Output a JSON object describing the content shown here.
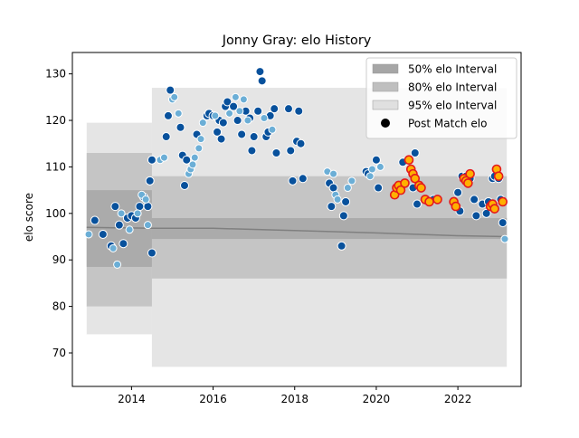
{
  "chart_data": {
    "type": "scatter",
    "title": "Jonny Gray: elo History",
    "xlabel": "",
    "ylabel": "elo score",
    "xlim": [
      2012.55,
      2023.55
    ],
    "ylim": [
      62.8,
      134.6
    ],
    "x_ticks": [
      2014,
      2016,
      2018,
      2020,
      2022
    ],
    "y_ticks": [
      70,
      80,
      90,
      100,
      110,
      120,
      130
    ],
    "grid": false,
    "legend": {
      "placement": "top-right",
      "entries": [
        "50% elo Interval",
        "80% elo Interval",
        "95% elo Interval",
        "Post Match elo"
      ]
    },
    "colors": {
      "band50": "#a6a6a6",
      "band80": "#bfbfbf",
      "band95": "#e0e0e0",
      "mean_line": "#808080",
      "dark_points": "#08519c",
      "light_points": "#6baed6",
      "highlight_fill": "#ffb000",
      "highlight_edge": "#e41a1c"
    },
    "mean_line": [
      [
        2012.9,
        97
      ],
      [
        2014.5,
        96.8
      ],
      [
        2016,
        96.8
      ],
      [
        2018,
        96.3
      ],
      [
        2020,
        95.8
      ],
      [
        2022,
        95.2
      ],
      [
        2023.2,
        95
      ]
    ],
    "bands": [
      {
        "name": "50% elo Interval",
        "segments": [
          {
            "x0": 2012.9,
            "x1": 2014.5,
            "lower": 88.5,
            "upper": 105
          },
          {
            "x0": 2014.5,
            "x1": 2023.2,
            "lower": 94.5,
            "upper": 99
          }
        ]
      },
      {
        "name": "80% elo Interval",
        "segments": [
          {
            "x0": 2012.9,
            "x1": 2014.5,
            "lower": 80,
            "upper": 113
          },
          {
            "x0": 2014.5,
            "x1": 2023.2,
            "lower": 86,
            "upper": 108
          }
        ]
      },
      {
        "name": "95% elo Interval",
        "segments": [
          {
            "x0": 2012.9,
            "x1": 2014.5,
            "lower": 74,
            "upper": 119.5
          },
          {
            "x0": 2014.5,
            "x1": 2023.2,
            "lower": 67,
            "upper": 127
          }
        ]
      }
    ],
    "series": [
      {
        "name": "Post Match elo",
        "points": [
          [
            2013.1,
            98.5
          ],
          [
            2013.3,
            95.5
          ],
          [
            2013.5,
            93
          ],
          [
            2013.6,
            101.5
          ],
          [
            2013.7,
            97.5
          ],
          [
            2013.8,
            93.5
          ],
          [
            2013.9,
            99
          ],
          [
            2014.0,
            99.5
          ],
          [
            2014.1,
            99
          ],
          [
            2014.2,
            101.5
          ],
          [
            2014.3,
            103.5
          ],
          [
            2014.4,
            101.5
          ],
          [
            2014.45,
            107
          ],
          [
            2014.5,
            111.5
          ],
          [
            2014.5,
            91.5
          ],
          [
            2014.85,
            116.5
          ],
          [
            2014.9,
            121
          ],
          [
            2014.95,
            126.5
          ],
          [
            2015.2,
            118.5
          ],
          [
            2015.25,
            112.5
          ],
          [
            2015.3,
            106
          ],
          [
            2015.35,
            111.5
          ],
          [
            2015.6,
            117
          ],
          [
            2015.85,
            121
          ],
          [
            2015.9,
            121.5
          ],
          [
            2016.0,
            121
          ],
          [
            2016.1,
            117.5
          ],
          [
            2016.15,
            120
          ],
          [
            2016.2,
            116
          ],
          [
            2016.25,
            119.5
          ],
          [
            2016.3,
            123
          ],
          [
            2016.35,
            124
          ],
          [
            2016.5,
            123
          ],
          [
            2016.6,
            120
          ],
          [
            2016.7,
            117
          ],
          [
            2016.8,
            122
          ],
          [
            2016.9,
            120.5
          ],
          [
            2016.95,
            113.5
          ],
          [
            2017.0,
            116.5
          ],
          [
            2017.1,
            122
          ],
          [
            2017.15,
            130.5
          ],
          [
            2017.2,
            128.5
          ],
          [
            2017.3,
            116.5
          ],
          [
            2017.35,
            117.5
          ],
          [
            2017.4,
            121
          ],
          [
            2017.5,
            122.5
          ],
          [
            2017.55,
            113
          ],
          [
            2017.85,
            122.5
          ],
          [
            2017.9,
            113.5
          ],
          [
            2017.95,
            107
          ],
          [
            2018.05,
            115.5
          ],
          [
            2018.1,
            122
          ],
          [
            2018.15,
            115
          ],
          [
            2018.2,
            107.5
          ],
          [
            2018.85,
            106.5
          ],
          [
            2018.9,
            101.5
          ],
          [
            2018.95,
            105.5
          ],
          [
            2019.15,
            93
          ],
          [
            2019.2,
            99.5
          ],
          [
            2019.25,
            102.5
          ],
          [
            2019.75,
            109
          ],
          [
            2019.8,
            108.5
          ],
          [
            2020.0,
            111.5
          ],
          [
            2020.05,
            105.5
          ],
          [
            2020.65,
            111
          ],
          [
            2020.9,
            105.5
          ],
          [
            2020.95,
            113
          ],
          [
            2021.0,
            102
          ],
          [
            2021.4,
            103
          ],
          [
            2022.0,
            104.5
          ],
          [
            2022.05,
            100.5
          ],
          [
            2022.1,
            108
          ],
          [
            2022.2,
            108
          ],
          [
            2022.3,
            107.5
          ],
          [
            2022.4,
            103
          ],
          [
            2022.45,
            99.5
          ],
          [
            2022.6,
            102
          ],
          [
            2022.7,
            100
          ],
          [
            2022.75,
            102.5
          ],
          [
            2022.85,
            107.5
          ],
          [
            2022.9,
            108
          ],
          [
            2023.0,
            107.5
          ],
          [
            2023.05,
            103
          ],
          [
            2023.1,
            98
          ],
          [
            2023.15,
            94.5
          ],
          [
            2012.95,
            95.5
          ],
          [
            2013.55,
            92.5
          ],
          [
            2013.65,
            89
          ],
          [
            2013.75,
            100
          ],
          [
            2013.95,
            96.5
          ],
          [
            2014.15,
            100
          ],
          [
            2014.25,
            104
          ],
          [
            2014.35,
            103
          ],
          [
            2014.4,
            97.5
          ],
          [
            2014.7,
            111.5
          ],
          [
            2014.8,
            112
          ],
          [
            2015.0,
            124.5
          ],
          [
            2015.05,
            125
          ],
          [
            2015.15,
            121.5
          ],
          [
            2015.4,
            108.5
          ],
          [
            2015.45,
            109.5
          ],
          [
            2015.5,
            110.5
          ],
          [
            2015.55,
            112
          ],
          [
            2015.65,
            114
          ],
          [
            2015.7,
            116
          ],
          [
            2015.75,
            119.5
          ],
          [
            2016.05,
            121
          ],
          [
            2016.4,
            121.5
          ],
          [
            2016.55,
            125
          ],
          [
            2016.65,
            122
          ],
          [
            2016.75,
            124.5
          ],
          [
            2016.85,
            120
          ],
          [
            2017.25,
            120.5
          ],
          [
            2017.45,
            118
          ],
          [
            2018.8,
            109
          ],
          [
            2018.95,
            108.5
          ],
          [
            2019.0,
            104
          ],
          [
            2019.05,
            103
          ],
          [
            2019.3,
            105.5
          ],
          [
            2019.4,
            107
          ],
          [
            2019.85,
            108
          ],
          [
            2019.9,
            109.5
          ],
          [
            2020.1,
            110
          ]
        ]
      }
    ],
    "highlighted_points": [
      [
        2020.45,
        104
      ],
      [
        2020.5,
        105.5
      ],
      [
        2020.55,
        106
      ],
      [
        2020.6,
        105
      ],
      [
        2020.7,
        106.5
      ],
      [
        2020.8,
        111.5
      ],
      [
        2020.85,
        109.5
      ],
      [
        2020.9,
        108.5
      ],
      [
        2020.95,
        107.5
      ],
      [
        2021.05,
        106
      ],
      [
        2021.1,
        105.5
      ],
      [
        2021.2,
        103
      ],
      [
        2021.3,
        102.5
      ],
      [
        2021.5,
        103
      ],
      [
        2021.9,
        102.5
      ],
      [
        2021.95,
        101.5
      ],
      [
        2022.15,
        107.5
      ],
      [
        2022.2,
        107
      ],
      [
        2022.25,
        106.5
      ],
      [
        2022.3,
        108.5
      ],
      [
        2022.8,
        101.5
      ],
      [
        2022.85,
        102
      ],
      [
        2022.9,
        101
      ],
      [
        2022.95,
        109.5
      ],
      [
        2023.0,
        108
      ],
      [
        2023.1,
        102.5
      ]
    ]
  }
}
